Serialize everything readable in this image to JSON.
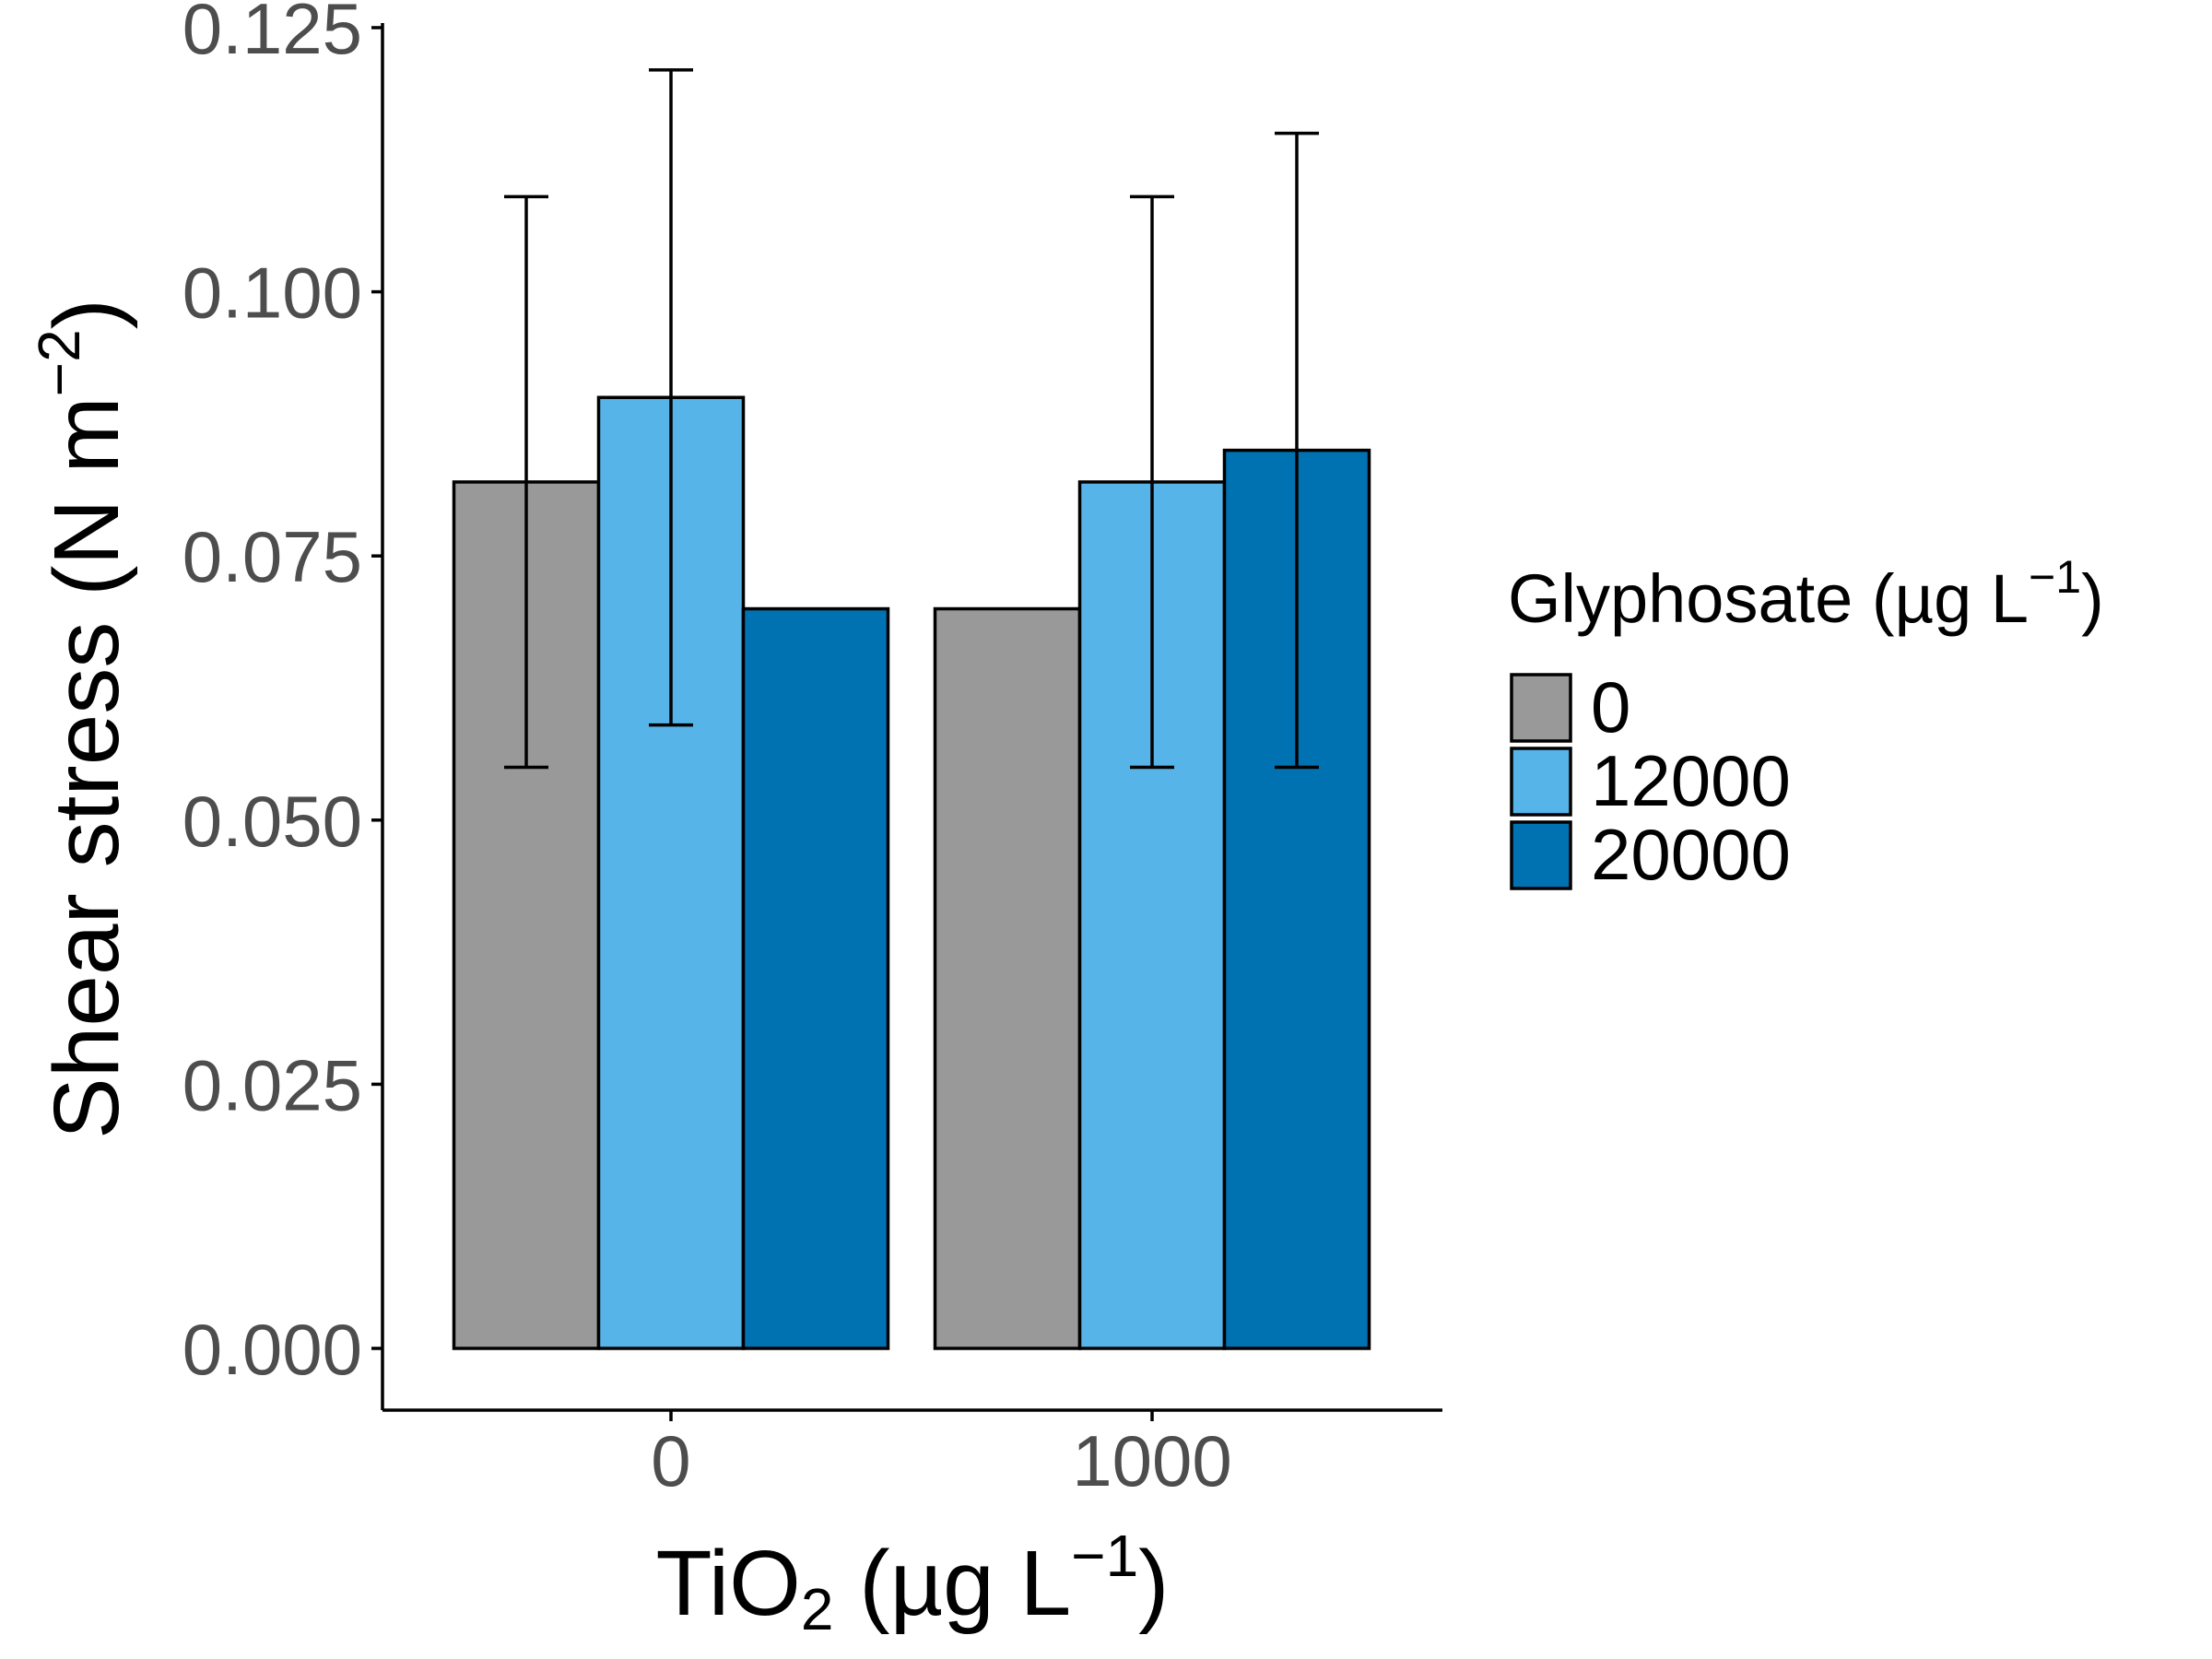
{
  "chart_data": {
    "type": "bar",
    "title": "",
    "xlabel": {
      "base": "TiO",
      "sub": "2",
      "mid": " (µg L",
      "sup": "−1",
      "end": ")"
    },
    "ylabel": {
      "base": "Shear stress (N m",
      "sup": "−2",
      "end": ")"
    },
    "categories": [
      "0",
      "1000"
    ],
    "ylim": [
      0,
      0.125
    ],
    "yticks": [
      "0.000",
      "0.025",
      "0.050",
      "0.075",
      "0.100",
      "0.125"
    ],
    "grid": false,
    "legend": {
      "title": {
        "base": "Glyphosate (µg L",
        "sup": "−1",
        "end": ")"
      },
      "position": "right"
    },
    "series": [
      {
        "name": "0",
        "color": "#999999",
        "values": [
          0.082,
          0.07
        ],
        "error_low": [
          0.055,
          null
        ],
        "error_high": [
          0.109,
          null
        ]
      },
      {
        "name": "12000",
        "color": "#56b4e9",
        "values": [
          0.09,
          0.082
        ],
        "error_low": [
          0.059,
          0.055
        ],
        "error_high": [
          0.121,
          0.109
        ]
      },
      {
        "name": "20000",
        "color": "#0072b2",
        "values": [
          0.07,
          0.085
        ],
        "error_low": [
          null,
          0.055
        ],
        "error_high": [
          null,
          0.115
        ]
      }
    ]
  }
}
